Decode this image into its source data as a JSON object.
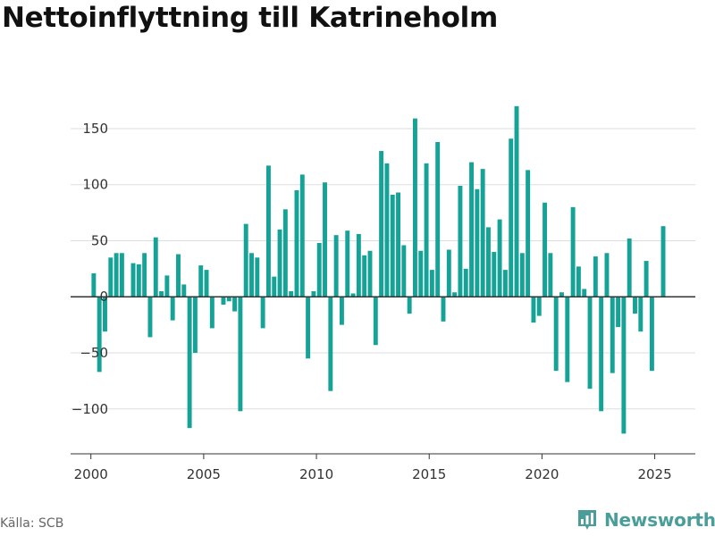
{
  "title": "Nettoinflyttning till Katrineholm",
  "source": "Källa: SCB",
  "brand": {
    "name": "Newsworthy",
    "icon": "newsworthy-logo-icon"
  },
  "colors": {
    "bar": "#14a396",
    "grid": "#dddddd",
    "zero": "#333333",
    "axis": "#333333",
    "brand": "#4a9e9a"
  },
  "chart_data": {
    "type": "bar",
    "title": "Nettoinflyttning till Katrineholm",
    "xlabel": "",
    "ylabel": "",
    "grid": true,
    "ylim": [
      -140,
      185
    ],
    "xlim": [
      1999.1,
      2026.8
    ],
    "yticks": [
      -100,
      -50,
      0,
      50,
      100,
      150
    ],
    "ytick_labels": [
      "−100",
      "−50",
      "0",
      "50",
      "100",
      "150"
    ],
    "xticks": [
      2000,
      2005,
      2010,
      2015,
      2020,
      2025
    ],
    "xtick_labels": [
      "2000",
      "2005",
      "2010",
      "2015",
      "2020",
      "2025"
    ],
    "x": [
      2000.125,
      2000.375,
      2000.625,
      2000.875,
      2001.125,
      2001.375,
      2001.625,
      2001.875,
      2002.125,
      2002.375,
      2002.625,
      2002.875,
      2003.125,
      2003.375,
      2003.625,
      2003.875,
      2004.125,
      2004.375,
      2004.625,
      2004.875,
      2005.125,
      2005.375,
      2005.625,
      2005.875,
      2006.125,
      2006.375,
      2006.625,
      2006.875,
      2007.125,
      2007.375,
      2007.625,
      2007.875,
      2008.125,
      2008.375,
      2008.625,
      2008.875,
      2009.125,
      2009.375,
      2009.625,
      2009.875,
      2010.125,
      2010.375,
      2010.625,
      2010.875,
      2011.125,
      2011.375,
      2011.625,
      2011.875,
      2012.125,
      2012.375,
      2012.625,
      2012.875,
      2013.125,
      2013.375,
      2013.625,
      2013.875,
      2014.125,
      2014.375,
      2014.625,
      2014.875,
      2015.125,
      2015.375,
      2015.625,
      2015.875,
      2016.125,
      2016.375,
      2016.625,
      2016.875,
      2017.125,
      2017.375,
      2017.625,
      2017.875,
      2018.125,
      2018.375,
      2018.625,
      2018.875,
      2019.125,
      2019.375,
      2019.625,
      2019.875,
      2020.125,
      2020.375,
      2020.625,
      2020.875,
      2021.125,
      2021.375,
      2021.625,
      2021.875,
      2022.125,
      2022.375,
      2022.625,
      2022.875,
      2023.125,
      2023.375,
      2023.625,
      2023.875,
      2024.125,
      2024.375,
      2024.625,
      2024.875,
      2025.125,
      2025.375
    ],
    "values": [
      21,
      -67,
      -31,
      35,
      39,
      39,
      0,
      30,
      29,
      39,
      -36,
      53,
      5,
      19,
      -21,
      38,
      11,
      -117,
      -50,
      28,
      24,
      -28,
      0,
      -7,
      -4,
      -13,
      -102,
      65,
      39,
      35,
      -28,
      117,
      18,
      60,
      78,
      5,
      95,
      109,
      -55,
      5,
      48,
      102,
      -84,
      55,
      -25,
      59,
      3,
      56,
      37,
      41,
      -43,
      130,
      119,
      91,
      93,
      46,
      -15,
      159,
      41,
      119,
      24,
      138,
      -22,
      42,
      4,
      99,
      25,
      120,
      96,
      114,
      62,
      40,
      69,
      24,
      141,
      170,
      39,
      113,
      -23,
      -17,
      84,
      39,
      -66,
      4,
      -76,
      80,
      27,
      7,
      -82,
      36,
      -102,
      39,
      -68,
      -27,
      -122,
      52,
      -15,
      -31,
      32,
      -66,
      0,
      63
    ]
  }
}
